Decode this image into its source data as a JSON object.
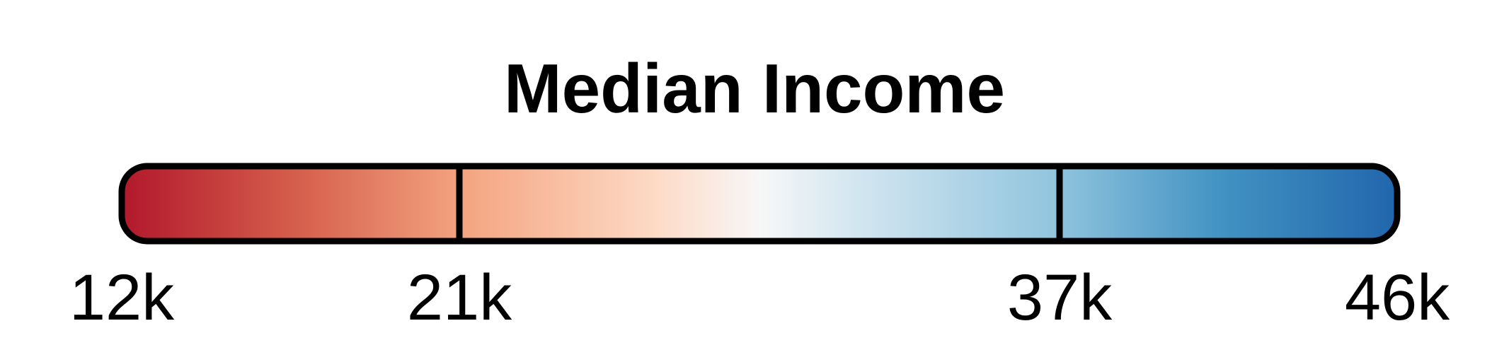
{
  "chart_data": {
    "type": "colorbar",
    "title": "Median Income",
    "colormap": "RdBu",
    "gradient_stops": [
      {
        "offset": 0.0,
        "color": "#b2182b"
      },
      {
        "offset": 0.14,
        "color": "#d6604d"
      },
      {
        "offset": 0.27,
        "color": "#f4a582"
      },
      {
        "offset": 0.42,
        "color": "#fddbc7"
      },
      {
        "offset": 0.5,
        "color": "#f7f7f7"
      },
      {
        "offset": 0.58,
        "color": "#d1e5f0"
      },
      {
        "offset": 0.73,
        "color": "#92c5de"
      },
      {
        "offset": 0.86,
        "color": "#4393c3"
      },
      {
        "offset": 1.0,
        "color": "#2166ac"
      }
    ],
    "range": [
      12,
      46
    ],
    "units": "k",
    "ticks": [
      {
        "value": 12,
        "label": "12k"
      },
      {
        "value": 21,
        "label": "21k"
      },
      {
        "value": 37,
        "label": "37k"
      },
      {
        "value": 46,
        "label": "46k"
      }
    ],
    "breaks": [
      21,
      37
    ],
    "outline_color": "#000000"
  }
}
